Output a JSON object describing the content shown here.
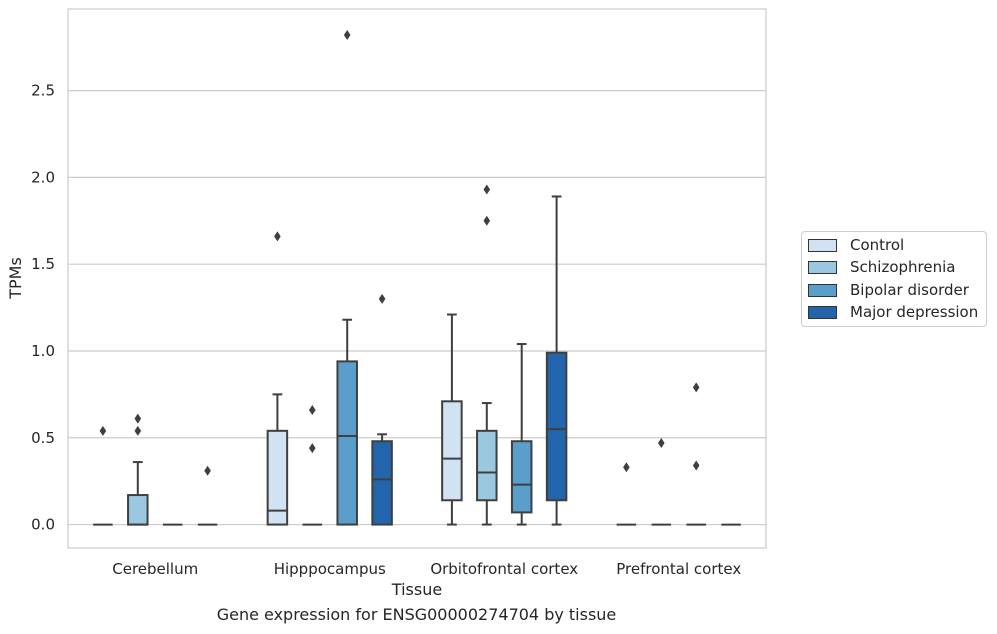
{
  "chart_data": {
    "type": "box",
    "title": "",
    "caption": "Gene expression for ENSG00000274704 by tissue",
    "xlabel": "Tissue",
    "ylabel": "TPMs",
    "ylim": [
      -0.135,
      2.97
    ],
    "yticks": [
      "0.0",
      "0.5",
      "1.0",
      "1.5",
      "2.0",
      "2.5"
    ],
    "grid": "horizontal",
    "legend_position": "right",
    "categories": [
      "Cerebellum",
      "Hipppocampus",
      "Orbitofrontal cortex",
      "Prefrontal cortex"
    ],
    "series": [
      {
        "name": "Control",
        "color": "#d1e2f2",
        "boxes": [
          {
            "q1": 0,
            "median": 0,
            "q3": 0,
            "whisker_low": 0,
            "whisker_high": 0,
            "outliers": [
              0.54
            ]
          },
          {
            "q1": 0,
            "median": 0.08,
            "q3": 0.54,
            "whisker_low": 0,
            "whisker_high": 0.75,
            "outliers": [
              1.66
            ]
          },
          {
            "q1": 0.14,
            "median": 0.38,
            "q3": 0.71,
            "whisker_low": 0,
            "whisker_high": 1.21,
            "outliers": []
          },
          {
            "q1": 0,
            "median": 0,
            "q3": 0,
            "whisker_low": 0,
            "whisker_high": 0,
            "outliers": [
              0.33
            ]
          }
        ]
      },
      {
        "name": "Schizophrenia",
        "color": "#9ac8e0",
        "boxes": [
          {
            "q1": 0,
            "median": 0,
            "q3": 0.17,
            "whisker_low": 0,
            "whisker_high": 0.36,
            "outliers": [
              0.54,
              0.61
            ]
          },
          {
            "q1": 0,
            "median": 0,
            "q3": 0,
            "whisker_low": 0,
            "whisker_high": 0,
            "outliers": [
              0.44,
              0.66
            ]
          },
          {
            "q1": 0.14,
            "median": 0.3,
            "q3": 0.54,
            "whisker_low": 0,
            "whisker_high": 0.7,
            "outliers": [
              1.75,
              1.93
            ]
          },
          {
            "q1": 0,
            "median": 0,
            "q3": 0,
            "whisker_low": 0,
            "whisker_high": 0,
            "outliers": [
              0.47
            ]
          }
        ]
      },
      {
        "name": "Bipolar disorder",
        "color": "#5a9fcb",
        "boxes": [
          {
            "q1": 0,
            "median": 0,
            "q3": 0,
            "whisker_low": 0,
            "whisker_high": 0,
            "outliers": []
          },
          {
            "q1": 0,
            "median": 0.51,
            "q3": 0.94,
            "whisker_low": 0,
            "whisker_high": 1.18,
            "outliers": [
              2.82
            ]
          },
          {
            "q1": 0.07,
            "median": 0.23,
            "q3": 0.48,
            "whisker_low": 0,
            "whisker_high": 1.04,
            "outliers": []
          },
          {
            "q1": 0,
            "median": 0,
            "q3": 0,
            "whisker_low": 0,
            "whisker_high": 0,
            "outliers": [
              0.34,
              0.79
            ]
          }
        ]
      },
      {
        "name": "Major depression",
        "color": "#2265ac",
        "boxes": [
          {
            "q1": 0,
            "median": 0,
            "q3": 0,
            "whisker_low": 0,
            "whisker_high": 0,
            "outliers": [
              0.31
            ]
          },
          {
            "q1": 0,
            "median": 0.26,
            "q3": 0.48,
            "whisker_low": 0,
            "whisker_high": 0.52,
            "outliers": [
              1.3
            ]
          },
          {
            "q1": 0.14,
            "median": 0.55,
            "q3": 0.99,
            "whisker_low": 0,
            "whisker_high": 1.89,
            "outliers": []
          },
          {
            "q1": 0,
            "median": 0,
            "q3": 0,
            "whisker_low": 0,
            "whisker_high": 0,
            "outliers": []
          }
        ]
      }
    ]
  }
}
